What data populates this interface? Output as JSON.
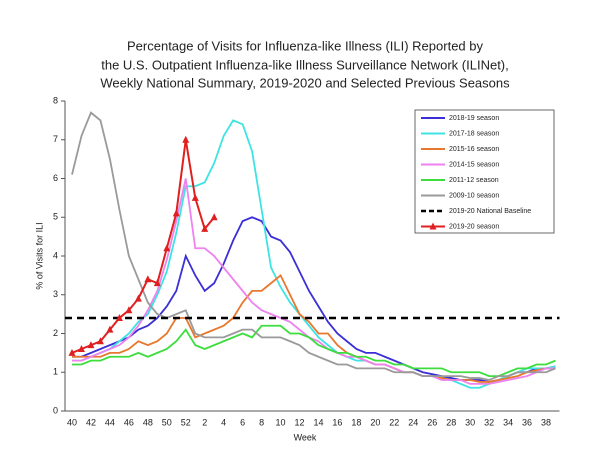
{
  "chart_data": {
    "type": "line",
    "title": [
      "Percentage of Visits for Influenza-like Illness (ILI) Reported by",
      "the U.S. Outpatient Influenza-like Illness Surveillance Network (ILINet),",
      "Weekly National Summary, 2019-2020 and Selected Previous Seasons"
    ],
    "x_label": "Week",
    "y_label": "% of Visits for ILI",
    "categories": [
      "40",
      null,
      "42",
      null,
      "44",
      null,
      "46",
      null,
      "48",
      null,
      "50",
      null,
      "52",
      null,
      "2",
      null,
      "4",
      null,
      "6",
      null,
      "8",
      null,
      "10",
      null,
      "12",
      null,
      "14",
      null,
      "16",
      null,
      "18",
      null,
      "20",
      null,
      "22",
      null,
      "24",
      null,
      "26",
      null,
      "28",
      null,
      "30",
      null,
      "32",
      null,
      "34",
      null,
      "36",
      null,
      "38",
      null
    ],
    "ylim": [
      0,
      8
    ],
    "yticks": [
      0,
      1,
      2,
      3,
      4,
      5,
      6,
      7,
      8
    ],
    "legend": "upper right",
    "series": [
      {
        "name": "2018-19 season",
        "color": "#3b2fd6",
        "values": [
          1.4,
          1.4,
          1.5,
          1.6,
          1.7,
          1.8,
          1.9,
          2.1,
          2.2,
          2.4,
          2.7,
          3.1,
          4.0,
          3.5,
          3.1,
          3.3,
          3.8,
          4.4,
          4.9,
          5.0,
          4.9,
          4.5,
          4.4,
          4.1,
          3.6,
          3.1,
          2.7,
          2.3,
          2.0,
          1.8,
          1.6,
          1.5,
          1.5,
          1.4,
          1.3,
          1.2,
          1.1,
          1.0,
          0.95,
          0.9,
          0.85,
          0.8,
          0.8,
          0.8,
          0.75,
          0.8,
          0.9,
          1.0,
          1.0,
          1.1,
          1.1,
          1.15
        ]
      },
      {
        "name": "2017-18 season",
        "color": "#3ee3e3",
        "values": [
          1.3,
          1.3,
          1.4,
          1.5,
          1.6,
          1.8,
          2.0,
          2.3,
          2.5,
          3.0,
          3.6,
          4.6,
          5.8,
          5.8,
          5.9,
          6.4,
          7.1,
          7.5,
          7.4,
          6.7,
          5.2,
          3.7,
          3.2,
          2.8,
          2.5,
          2.2,
          1.9,
          1.7,
          1.5,
          1.4,
          1.3,
          1.3,
          1.2,
          1.2,
          1.1,
          1.0,
          1.0,
          0.9,
          0.9,
          0.85,
          0.8,
          0.7,
          0.6,
          0.6,
          0.7,
          0.8,
          0.9,
          1.0,
          1.1,
          1.1,
          1.1,
          1.15
        ]
      },
      {
        "name": "2015-16 season",
        "color": "#e8782e",
        "values": [
          1.4,
          1.4,
          1.4,
          1.4,
          1.5,
          1.5,
          1.6,
          1.8,
          1.7,
          1.8,
          2.0,
          2.4,
          2.4,
          1.9,
          2.0,
          2.1,
          2.2,
          2.4,
          2.8,
          3.1,
          3.1,
          3.3,
          3.5,
          3.0,
          2.5,
          2.3,
          2.0,
          2.0,
          1.7,
          1.5,
          1.4,
          1.3,
          1.2,
          1.2,
          1.1,
          1.0,
          1.0,
          0.9,
          0.9,
          0.85,
          0.8,
          0.8,
          0.8,
          0.75,
          0.75,
          0.8,
          0.85,
          0.9,
          1.0,
          1.05,
          1.1,
          1.1
        ]
      },
      {
        "name": "2014-15 season",
        "color": "#ee82ee",
        "values": [
          1.3,
          1.3,
          1.4,
          1.5,
          1.6,
          1.7,
          1.9,
          2.2,
          2.6,
          3.1,
          3.9,
          4.9,
          6.0,
          4.2,
          4.2,
          4.0,
          3.7,
          3.4,
          3.1,
          2.8,
          2.6,
          2.5,
          2.4,
          2.3,
          2.1,
          1.9,
          1.8,
          1.6,
          1.5,
          1.4,
          1.4,
          1.3,
          1.2,
          1.2,
          1.1,
          1.0,
          1.0,
          0.9,
          0.9,
          0.8,
          0.8,
          0.8,
          0.7,
          0.7,
          0.7,
          0.75,
          0.8,
          0.85,
          0.9,
          1.0,
          1.1,
          1.1
        ]
      },
      {
        "name": "2011-12 season",
        "color": "#3ddd3d",
        "values": [
          1.2,
          1.2,
          1.3,
          1.3,
          1.4,
          1.4,
          1.4,
          1.5,
          1.4,
          1.5,
          1.6,
          1.8,
          2.1,
          1.7,
          1.6,
          1.7,
          1.8,
          1.9,
          2.0,
          1.9,
          2.2,
          2.2,
          2.2,
          2.0,
          2.0,
          1.9,
          1.7,
          1.6,
          1.5,
          1.5,
          1.4,
          1.4,
          1.3,
          1.3,
          1.2,
          1.2,
          1.1,
          1.1,
          1.1,
          1.1,
          1.0,
          1.0,
          1.0,
          1.0,
          0.9,
          0.9,
          1.0,
          1.1,
          1.1,
          1.2,
          1.2,
          1.3
        ]
      },
      {
        "name": "2009-10 season",
        "color": "#9a9a9a",
        "values": [
          6.1,
          7.1,
          7.7,
          7.5,
          6.5,
          5.2,
          4.0,
          3.4,
          2.8,
          2.5,
          2.4,
          2.5,
          2.6,
          2.0,
          1.9,
          1.9,
          1.9,
          2.0,
          2.1,
          2.1,
          1.9,
          1.9,
          1.9,
          1.8,
          1.7,
          1.5,
          1.4,
          1.3,
          1.2,
          1.2,
          1.1,
          1.1,
          1.1,
          1.1,
          1.0,
          1.0,
          1.0,
          0.9,
          0.9,
          0.9,
          0.9,
          0.9,
          0.85,
          0.85,
          0.8,
          0.9,
          0.9,
          1.0,
          1.0,
          1.0,
          1.0,
          1.1
        ]
      },
      {
        "name": "2019-20 National Baseline",
        "color": "#000000",
        "dashed": true,
        "value": 2.4
      },
      {
        "name": "2019-20 season",
        "color": "#e02020",
        "marker": "triangle",
        "values": [
          1.5,
          1.6,
          1.7,
          1.8,
          2.1,
          2.4,
          2.6,
          2.9,
          3.4,
          3.3,
          4.2,
          5.1,
          7.0,
          5.5,
          4.7,
          5.0,
          null,
          null,
          null,
          null,
          null,
          null,
          null,
          null,
          null,
          null,
          null,
          null,
          null,
          null,
          null,
          null,
          null,
          null,
          null,
          null,
          null,
          null,
          null,
          null,
          null,
          null,
          null,
          null,
          null,
          null,
          null,
          null,
          null,
          null,
          null,
          null
        ]
      }
    ]
  }
}
